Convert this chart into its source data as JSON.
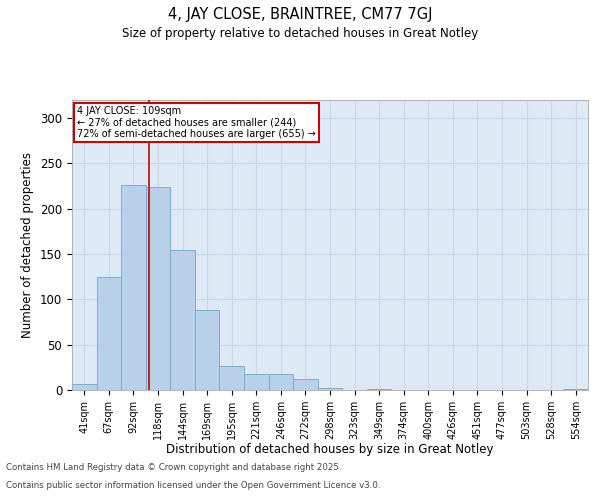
{
  "title1": "4, JAY CLOSE, BRAINTREE, CM77 7GJ",
  "title2": "Size of property relative to detached houses in Great Notley",
  "xlabel": "Distribution of detached houses by size in Great Notley",
  "ylabel": "Number of detached properties",
  "categories": [
    "41sqm",
    "67sqm",
    "92sqm",
    "118sqm",
    "144sqm",
    "169sqm",
    "195sqm",
    "221sqm",
    "246sqm",
    "272sqm",
    "298sqm",
    "323sqm",
    "349sqm",
    "374sqm",
    "400sqm",
    "426sqm",
    "451sqm",
    "477sqm",
    "503sqm",
    "528sqm",
    "554sqm"
  ],
  "values": [
    7,
    125,
    226,
    224,
    155,
    88,
    27,
    18,
    18,
    12,
    2,
    0,
    1,
    0,
    0,
    0,
    0,
    0,
    0,
    0,
    1
  ],
  "bar_color": "#b8d0e8",
  "bar_edge_color": "#7aadd4",
  "grid_color": "#c8d8e8",
  "bg_color": "#dde9f4",
  "vline_x": 2.65,
  "vline_color": "#cc0000",
  "annotation_line1": "4 JAY CLOSE: 109sqm",
  "annotation_line2": "← 27% of detached houses are smaller (244)",
  "annotation_line3": "72% of semi-detached houses are larger (655) →",
  "annotation_box_color": "#ffffff",
  "annotation_box_edge": "#cc0000",
  "footer1": "Contains HM Land Registry data © Crown copyright and database right 2025.",
  "footer2": "Contains public sector information licensed under the Open Government Licence v3.0.",
  "ylim": [
    0,
    320
  ],
  "yticks": [
    0,
    50,
    100,
    150,
    200,
    250,
    300
  ]
}
